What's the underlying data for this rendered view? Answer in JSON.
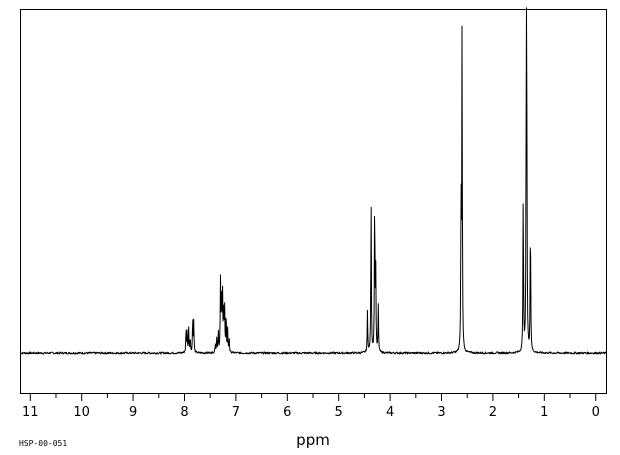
{
  "chart_data": {
    "type": "line",
    "title": "",
    "xlabel": "ppm",
    "ylabel": "",
    "xlim": [
      11.2,
      -0.2
    ],
    "ylim": [
      -0.12,
      1.03
    ],
    "x_reversed": true,
    "x_ticks": [
      11,
      10,
      9,
      8,
      7,
      6,
      5,
      4,
      3,
      2,
      1,
      0
    ],
    "x_tick_labels": [
      "11",
      "10",
      "9",
      "8",
      "7",
      "6",
      "5",
      "4",
      "3",
      "2",
      "1",
      "0"
    ],
    "grid": false,
    "legend": "none",
    "line_color": "#000000",
    "series": [
      {
        "peaks": [
          {
            "x": 7.97,
            "h": 0.07
          },
          {
            "x": 7.95,
            "h": 0.06
          },
          {
            "x": 7.92,
            "h": 0.08
          },
          {
            "x": 7.89,
            "h": 0.05
          },
          {
            "x": 7.84,
            "h": 0.11
          },
          {
            "x": 7.82,
            "h": 0.09
          },
          {
            "x": 7.4,
            "h": 0.03
          },
          {
            "x": 7.37,
            "h": 0.05
          },
          {
            "x": 7.34,
            "h": 0.06
          },
          {
            "x": 7.3,
            "h": 0.21
          },
          {
            "x": 7.28,
            "h": 0.19
          },
          {
            "x": 7.26,
            "h": 0.17
          },
          {
            "x": 7.24,
            "h": 0.13
          },
          {
            "x": 7.22,
            "h": 0.14
          },
          {
            "x": 7.19,
            "h": 0.12
          },
          {
            "x": 7.16,
            "h": 0.07
          },
          {
            "x": 7.13,
            "h": 0.04
          },
          {
            "x": 4.44,
            "h": 0.13
          },
          {
            "x": 4.37,
            "h": 0.47
          },
          {
            "x": 4.3,
            "h": 0.49
          },
          {
            "x": 4.28,
            "h": 0.25
          },
          {
            "x": 4.23,
            "h": 0.14
          },
          {
            "x": 2.6,
            "h": 0.97
          },
          {
            "x": 2.62,
            "h": 0.48
          },
          {
            "x": 1.41,
            "h": 0.5
          },
          {
            "x": 1.35,
            "h": 1.0
          },
          {
            "x": 1.34,
            "h": 0.52
          },
          {
            "x": 1.27,
            "h": 0.43
          }
        ],
        "linewidth_ppm": 0.006
      }
    ]
  },
  "footer": {
    "sample_id": "HSP-00-051"
  }
}
